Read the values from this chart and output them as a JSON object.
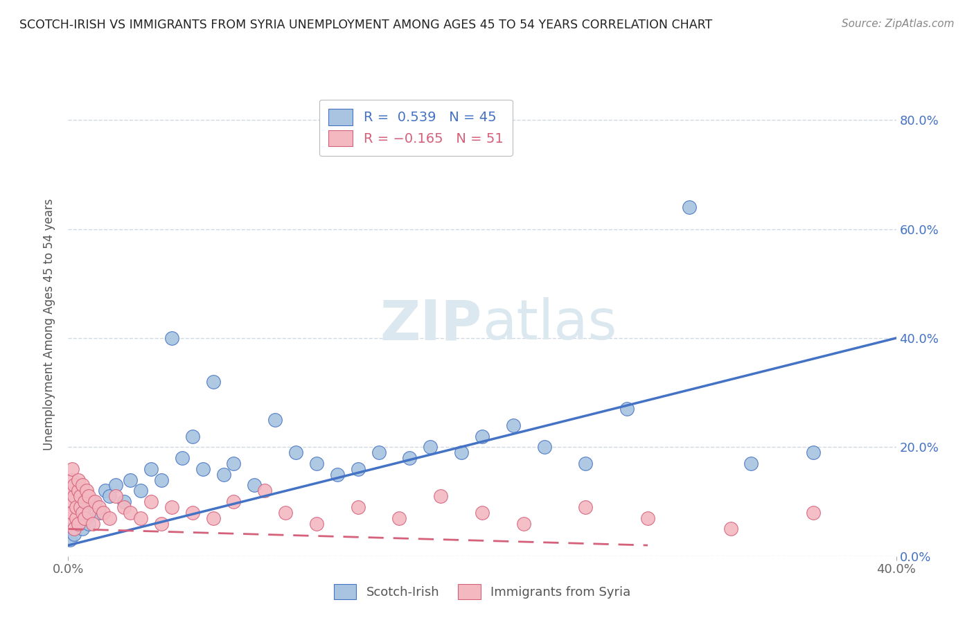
{
  "title": "SCOTCH-IRISH VS IMMIGRANTS FROM SYRIA UNEMPLOYMENT AMONG AGES 45 TO 54 YEARS CORRELATION CHART",
  "source": "Source: ZipAtlas.com",
  "ylabel": "Unemployment Among Ages 45 to 54 years",
  "legend_label1": "Scotch-Irish",
  "legend_label2": "Immigrants from Syria",
  "R1": "0.539",
  "N1": "45",
  "R2": "-0.165",
  "N2": "51",
  "color_blue": "#a8c4e0",
  "color_blue_line": "#4472c4",
  "color_pink": "#f4b8c1",
  "color_pink_line": "#d4607a",
  "color_blue_text": "#4472c4",
  "color_pink_text": "#d4607a",
  "watermark_color": "#dce8f0",
  "background_color": "#ffffff",
  "grid_color": "#d0d8e0",
  "scotch_irish_x": [
    0.001,
    0.002,
    0.003,
    0.004,
    0.005,
    0.006,
    0.007,
    0.008,
    0.009,
    0.01,
    0.012,
    0.015,
    0.018,
    0.02,
    0.023,
    0.027,
    0.03,
    0.035,
    0.04,
    0.045,
    0.05,
    0.055,
    0.06,
    0.065,
    0.07,
    0.075,
    0.08,
    0.09,
    0.1,
    0.11,
    0.12,
    0.13,
    0.14,
    0.15,
    0.165,
    0.175,
    0.19,
    0.2,
    0.215,
    0.23,
    0.25,
    0.27,
    0.3,
    0.33,
    0.36
  ],
  "scotch_irish_y": [
    0.03,
    0.05,
    0.04,
    0.07,
    0.06,
    0.08,
    0.05,
    0.09,
    0.07,
    0.06,
    0.1,
    0.08,
    0.12,
    0.11,
    0.13,
    0.1,
    0.14,
    0.12,
    0.16,
    0.14,
    0.4,
    0.18,
    0.22,
    0.16,
    0.32,
    0.15,
    0.17,
    0.13,
    0.25,
    0.19,
    0.17,
    0.15,
    0.16,
    0.19,
    0.18,
    0.2,
    0.19,
    0.22,
    0.24,
    0.2,
    0.17,
    0.27,
    0.64,
    0.17,
    0.19
  ],
  "syria_x": [
    0.001,
    0.001,
    0.001,
    0.002,
    0.002,
    0.002,
    0.002,
    0.003,
    0.003,
    0.003,
    0.004,
    0.004,
    0.005,
    0.005,
    0.005,
    0.006,
    0.006,
    0.007,
    0.007,
    0.008,
    0.008,
    0.009,
    0.01,
    0.01,
    0.012,
    0.013,
    0.015,
    0.017,
    0.02,
    0.023,
    0.027,
    0.03,
    0.035,
    0.04,
    0.045,
    0.05,
    0.06,
    0.07,
    0.08,
    0.095,
    0.105,
    0.12,
    0.14,
    0.16,
    0.18,
    0.2,
    0.22,
    0.25,
    0.28,
    0.32,
    0.36
  ],
  "syria_y": [
    0.08,
    0.12,
    0.06,
    0.1,
    0.14,
    0.08,
    0.16,
    0.05,
    0.11,
    0.13,
    0.07,
    0.09,
    0.12,
    0.06,
    0.14,
    0.09,
    0.11,
    0.08,
    0.13,
    0.07,
    0.1,
    0.12,
    0.08,
    0.11,
    0.06,
    0.1,
    0.09,
    0.08,
    0.07,
    0.11,
    0.09,
    0.08,
    0.07,
    0.1,
    0.06,
    0.09,
    0.08,
    0.07,
    0.1,
    0.12,
    0.08,
    0.06,
    0.09,
    0.07,
    0.11,
    0.08,
    0.06,
    0.09,
    0.07,
    0.05,
    0.08
  ],
  "xlim": [
    0.0,
    0.4
  ],
  "ylim": [
    0.0,
    0.85
  ],
  "yticks": [
    0.0,
    0.2,
    0.4,
    0.6,
    0.8
  ],
  "yticklabels": [
    "0.0%",
    "20.0%",
    "40.0%",
    "60.0%",
    "80.0%"
  ]
}
